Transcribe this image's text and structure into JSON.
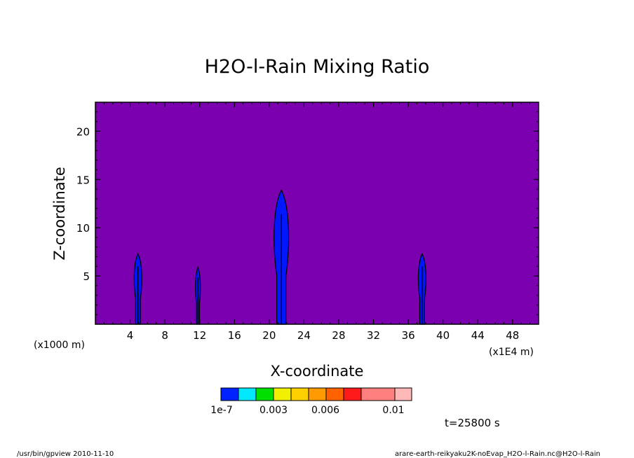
{
  "chart_data": {
    "type": "heatmap",
    "title": "H2O-l-Rain Mixing Ratio",
    "xlabel": "X-coordinate",
    "ylabel": "Z-coordinate",
    "x_scale_note": "(x1E4 m)",
    "y_scale_note": "(x1000 m)",
    "xlim": [
      0,
      51
    ],
    "ylim": [
      0,
      23
    ],
    "xticks": [
      4,
      8,
      12,
      16,
      20,
      24,
      28,
      32,
      36,
      40,
      44,
      48
    ],
    "yticks": [
      5,
      10,
      15,
      20
    ],
    "background_level_color": "#7a00b0",
    "rain_color": "#0018ff",
    "colorbar": {
      "colors": [
        "#0022ff",
        "#00e8ff",
        "#00e000",
        "#f0f000",
        "#ffd000",
        "#ff9a00",
        "#ff6200",
        "#ff1a1a",
        "#ff7f7f",
        "#ffb8b8"
      ],
      "tick_labels": [
        "1e-7",
        "0.003",
        "0.006",
        "0.01"
      ]
    },
    "cells": [
      {
        "x": 4.9,
        "z_top": 7.3,
        "width": 1.1
      },
      {
        "x": 11.8,
        "z_top": 5.9,
        "width": 0.7
      },
      {
        "x": 21.4,
        "z_top": 13.9,
        "width": 2.1
      },
      {
        "x": 37.6,
        "z_top": 7.3,
        "width": 1.1
      }
    ],
    "time_label": "t=25800 s"
  },
  "footer": {
    "left": "/usr/bin/gpview  2010-11-10",
    "right": "arare-earth-reikyaku2K-noEvap_H2O-l-Rain.nc@H2O-l-Rain"
  }
}
